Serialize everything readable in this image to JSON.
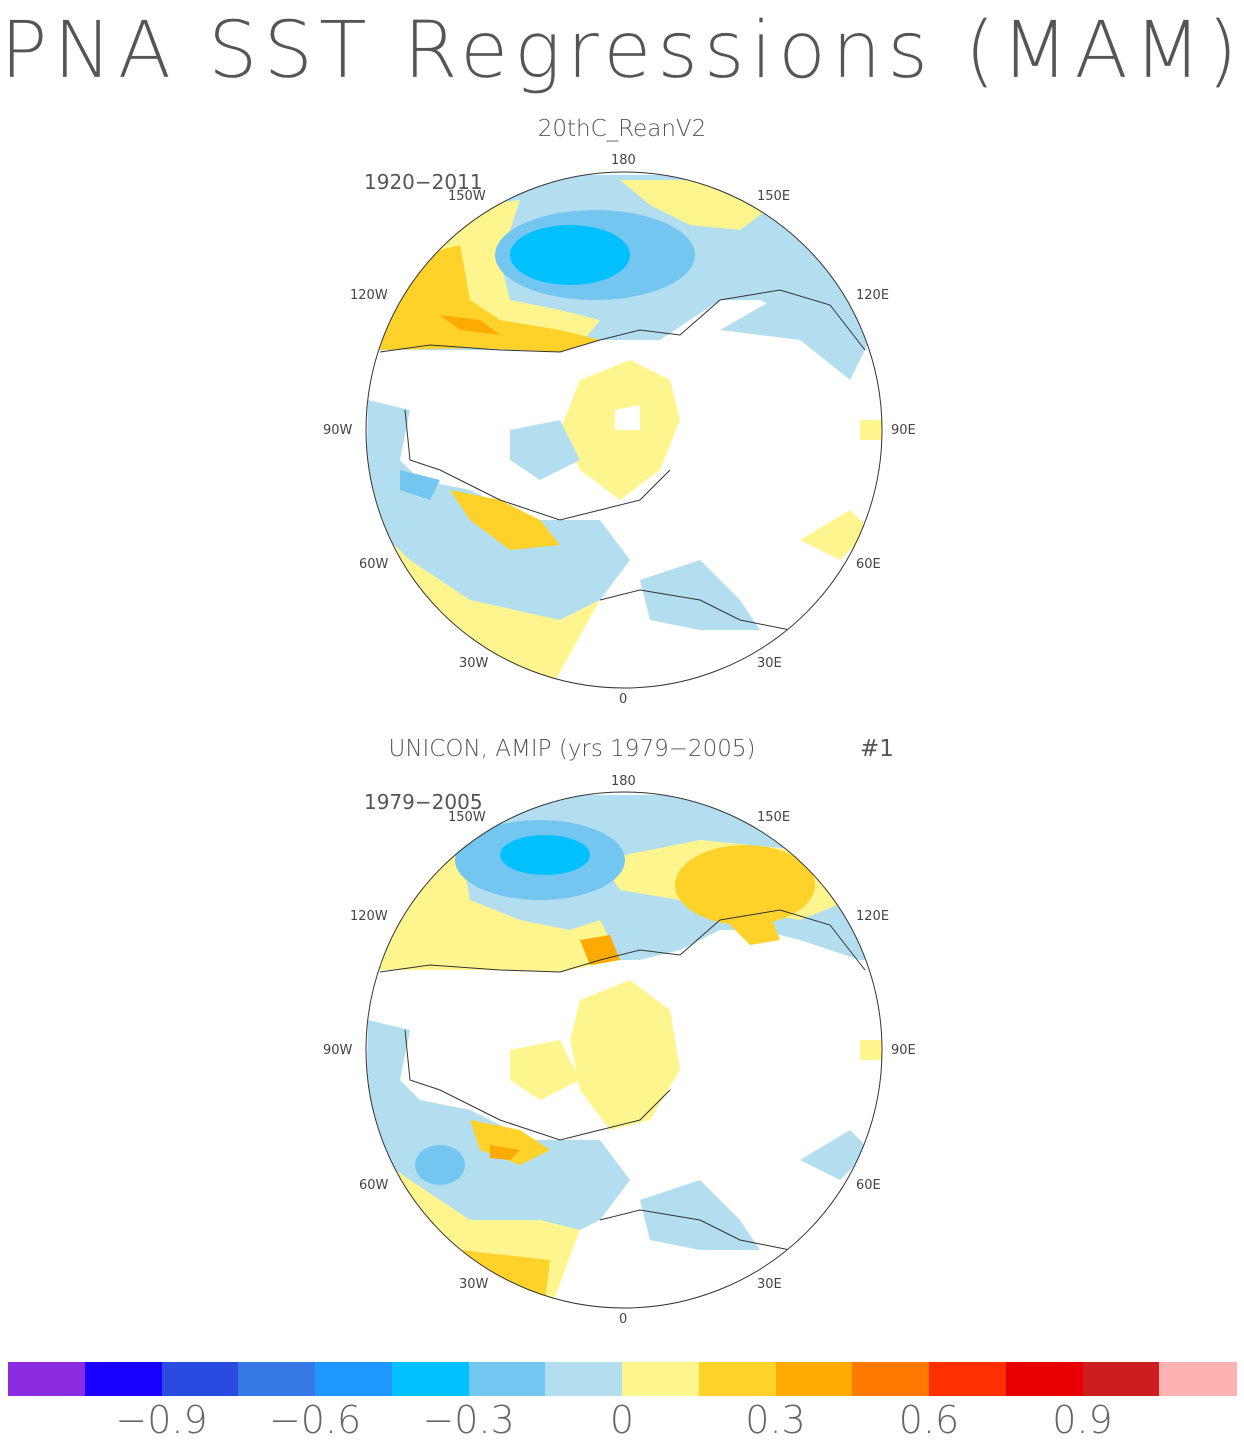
{
  "title": "PNA SST Regressions (MAM)",
  "panels": [
    {
      "title": "20thC_ReanV2",
      "years": "1920−2011",
      "lon_labels": {
        "top": "180",
        "w150": "150W",
        "e150": "150E",
        "w120": "120W",
        "e120": "120E",
        "w90": "90W",
        "e90": "90E",
        "w60": "60W",
        "e60": "60E",
        "w30": "30W",
        "e30": "30E",
        "bottom": "0"
      }
    },
    {
      "title": "UNICON, AMIP (yrs 1979−2005)",
      "tag": "#1",
      "years": "1979−2005",
      "lon_labels": {
        "top": "180",
        "w150": "150W",
        "e150": "150E",
        "w120": "120W",
        "e120": "120E",
        "w90": "90W",
        "e90": "90E",
        "w60": "60W",
        "e60": "60E",
        "w30": "30W",
        "e30": "30E",
        "bottom": "0"
      }
    }
  ],
  "colorbar": {
    "colors": [
      "#8a2be2",
      "#1a00ff",
      "#2a4be0",
      "#3578e6",
      "#1e98ff",
      "#00c0ff",
      "#72c6f0",
      "#b3def0",
      "#fff58f",
      "#ffd22a",
      "#ffaa00",
      "#ff7800",
      "#ff3000",
      "#e80000",
      "#cc1e1e",
      "#ffb2b2"
    ],
    "tick_labels": [
      "−0.9",
      "−0.6",
      "−0.3",
      "0",
      "0.3",
      "0.6",
      "0.9"
    ]
  }
}
